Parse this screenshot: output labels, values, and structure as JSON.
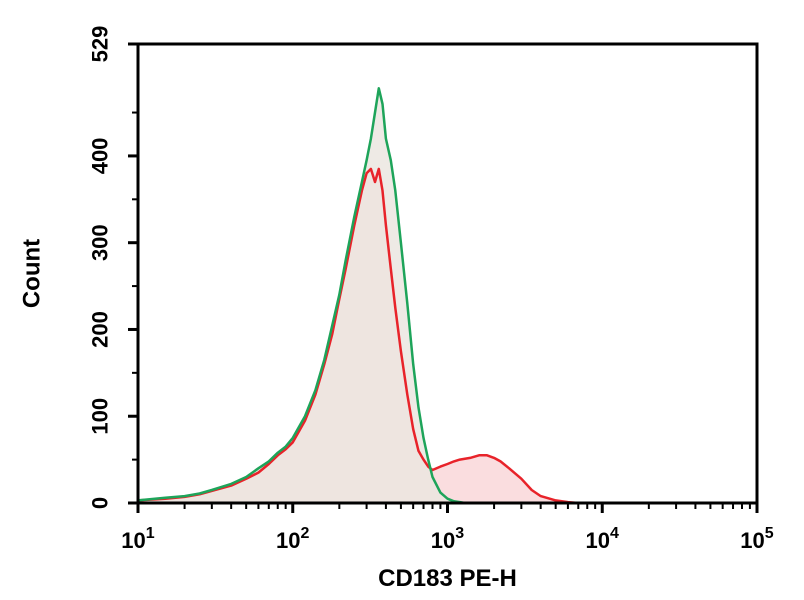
{
  "chart_data": {
    "type": "area",
    "xlabel": "CD183 PE-H",
    "ylabel": "Count",
    "x_scale": "log",
    "xlim": [
      10,
      100000
    ],
    "ylim": [
      0,
      529
    ],
    "x_ticks": [
      {
        "value": 10,
        "base": "10",
        "exp": "1"
      },
      {
        "value": 100,
        "base": "10",
        "exp": "2"
      },
      {
        "value": 1000,
        "base": "10",
        "exp": "3"
      },
      {
        "value": 10000,
        "base": "10",
        "exp": "4"
      },
      {
        "value": 100000,
        "base": "10",
        "exp": "5"
      }
    ],
    "y_ticks": [
      0,
      100,
      200,
      300,
      400,
      529
    ],
    "grid": false,
    "series": [
      {
        "color": "#e8232a",
        "fill": "#f9d9dc",
        "x": [
          10,
          15,
          20,
          25,
          30,
          40,
          50,
          60,
          70,
          80,
          90,
          100,
          120,
          140,
          160,
          180,
          200,
          220,
          250,
          280,
          300,
          320,
          340,
          360,
          380,
          400,
          430,
          460,
          500,
          550,
          600,
          650,
          700,
          750,
          800,
          900,
          1000,
          1100,
          1200,
          1400,
          1600,
          1800,
          2000,
          2200,
          2500,
          3000,
          3500,
          4000,
          5000,
          6000,
          7000,
          8000,
          10000
        ],
        "y": [
          3,
          5,
          7,
          10,
          14,
          20,
          28,
          35,
          45,
          55,
          62,
          70,
          95,
          125,
          160,
          195,
          235,
          270,
          320,
          360,
          380,
          385,
          370,
          385,
          360,
          320,
          270,
          225,
          175,
          125,
          85,
          60,
          50,
          42,
          38,
          42,
          45,
          48,
          50,
          52,
          55,
          55,
          52,
          48,
          40,
          28,
          15,
          8,
          3,
          1,
          0,
          0,
          0
        ]
      },
      {
        "color": "#1ea45a",
        "fill": "#ebe6e0",
        "x": [
          10,
          15,
          20,
          25,
          30,
          40,
          50,
          60,
          70,
          80,
          90,
          100,
          120,
          140,
          160,
          180,
          200,
          220,
          250,
          280,
          300,
          320,
          340,
          360,
          380,
          400,
          430,
          460,
          500,
          550,
          600,
          650,
          700,
          750,
          800,
          900,
          1000,
          1100,
          1200,
          1300,
          1400,
          1500
        ],
        "y": [
          3,
          6,
          8,
          11,
          15,
          22,
          30,
          40,
          48,
          58,
          65,
          75,
          100,
          130,
          165,
          205,
          240,
          280,
          330,
          370,
          395,
          420,
          450,
          478,
          460,
          420,
          395,
          360,
          300,
          230,
          160,
          110,
          75,
          50,
          30,
          12,
          5,
          2,
          1,
          0,
          0,
          0
        ]
      }
    ]
  }
}
